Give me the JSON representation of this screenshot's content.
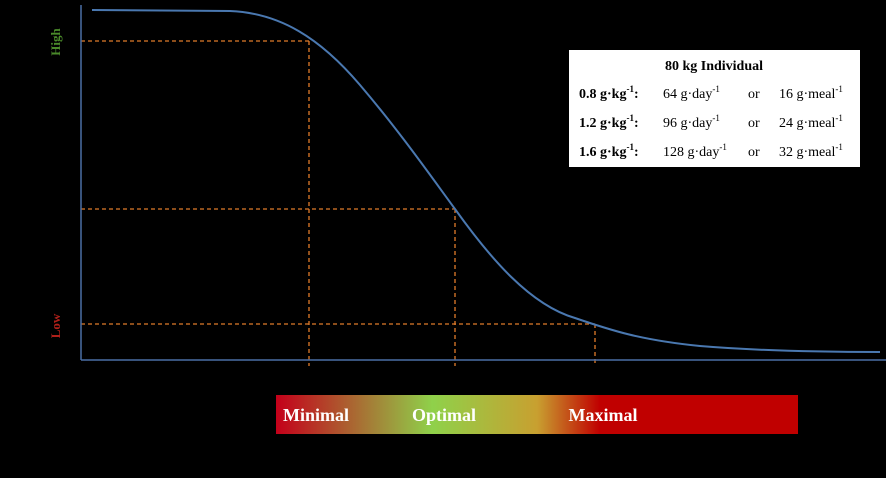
{
  "y_axis": {
    "high": "High",
    "low": "Low"
  },
  "table": {
    "title": "80 kg Individual",
    "rows": [
      {
        "dose": "0.8 g·kg",
        "dose_sup": "-1",
        "sep": ":",
        "daily": "64 g·day",
        "daily_sup": "-1",
        "or": "or",
        "meal": "16 g·meal",
        "meal_sup": "-1"
      },
      {
        "dose": "1.2 g·kg",
        "dose_sup": "-1",
        "sep": ":",
        "daily": "96 g·day",
        "daily_sup": "-1",
        "or": "or",
        "meal": "24 g·meal",
        "meal_sup": "-1"
      },
      {
        "dose": "1.6 g·kg",
        "dose_sup": "-1",
        "sep": ":",
        "daily": "128 g·day",
        "daily_sup": "-1",
        "or": "or",
        "meal": "32 g·meal",
        "meal_sup": "-1"
      }
    ]
  },
  "scale_bar": {
    "labels": [
      "Minimal",
      "Optimal",
      "Maximal"
    ]
  }
}
